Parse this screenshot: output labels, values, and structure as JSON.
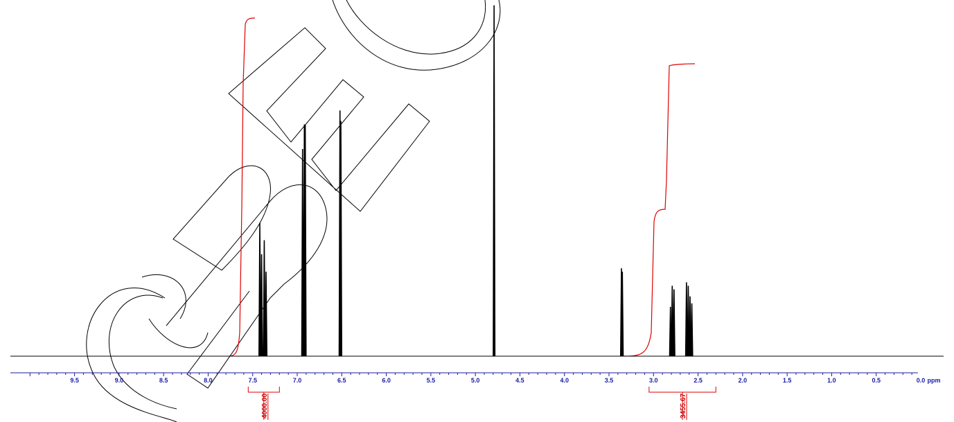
{
  "watermark": "SPEC",
  "colors": {
    "spectrum": "#000000",
    "integral": "#dd0000",
    "axis": "#1a1aa6",
    "watermark": "#000000"
  },
  "chart_data": {
    "type": "line",
    "title": "",
    "xlabel": "ppm",
    "ylabel": "",
    "xlim": [
      10.0,
      -0.4
    ],
    "x_reversed": true,
    "grid": false,
    "x_ticks": [
      "9.5",
      "9.0",
      "8.5",
      "8.0",
      "7.5",
      "7.0",
      "6.5",
      "6.0",
      "5.5",
      "5.0",
      "4.5",
      "4.0",
      "3.5",
      "3.0",
      "2.5",
      "2.0",
      "1.5",
      "1.0",
      "0.5",
      "0.0"
    ],
    "peaks": [
      {
        "ppm": 7.42,
        "height": 0.38
      },
      {
        "ppm": 7.4,
        "height": 0.29
      },
      {
        "ppm": 7.37,
        "height": 0.33
      },
      {
        "ppm": 7.35,
        "height": 0.24
      },
      {
        "ppm": 6.94,
        "height": 0.59
      },
      {
        "ppm": 6.92,
        "height": 0.66
      },
      {
        "ppm": 6.91,
        "height": 0.66
      },
      {
        "ppm": 6.52,
        "height": 0.7
      },
      {
        "ppm": 6.51,
        "height": 0.67
      },
      {
        "ppm": 4.79,
        "height": 1.0
      },
      {
        "ppm": 3.36,
        "height": 0.25
      },
      {
        "ppm": 3.35,
        "height": 0.24
      },
      {
        "ppm": 2.81,
        "height": 0.14
      },
      {
        "ppm": 2.79,
        "height": 0.2
      },
      {
        "ppm": 2.77,
        "height": 0.19
      },
      {
        "ppm": 2.63,
        "height": 0.21
      },
      {
        "ppm": 2.61,
        "height": 0.2
      },
      {
        "ppm": 2.59,
        "height": 0.17
      },
      {
        "ppm": 2.57,
        "height": 0.15
      }
    ],
    "integrals": [
      {
        "from": 7.55,
        "to": 7.2,
        "value": "4000.00"
      },
      {
        "from": 3.05,
        "to": 2.3,
        "value": "3455.67"
      }
    ]
  }
}
